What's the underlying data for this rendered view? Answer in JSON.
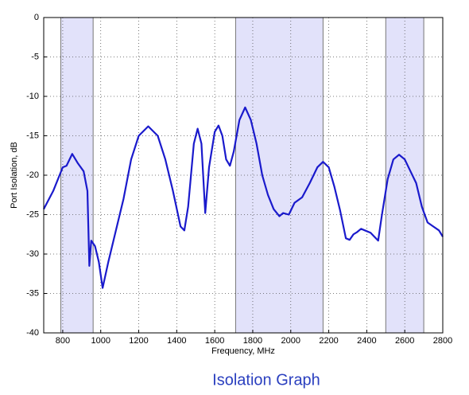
{
  "chart_data": {
    "type": "line",
    "caption": "Isolation Graph",
    "xlabel": "Frequency, MHz",
    "ylabel": "Port Isolation, dB",
    "xlim": [
      700,
      2800
    ],
    "ylim": [
      -40,
      0
    ],
    "xticks": [
      800,
      1000,
      1200,
      1400,
      1600,
      1800,
      2000,
      2200,
      2400,
      2600,
      2800
    ],
    "yticks": [
      0,
      -5,
      -10,
      -15,
      -20,
      -25,
      -30,
      -35,
      -40
    ],
    "grid": true,
    "bands": [
      {
        "x": [
          790,
          960
        ],
        "color": "#e2e2fa"
      },
      {
        "x": [
          1710,
          2170
        ],
        "color": "#e2e2fa"
      },
      {
        "x": [
          2500,
          2700
        ],
        "color": "#e2e2fa"
      }
    ],
    "x": [
      700,
      750,
      800,
      820,
      850,
      880,
      910,
      930,
      940,
      950,
      970,
      990,
      1010,
      1040,
      1080,
      1120,
      1160,
      1200,
      1250,
      1300,
      1340,
      1380,
      1420,
      1440,
      1460,
      1490,
      1510,
      1530,
      1550,
      1570,
      1600,
      1620,
      1640,
      1660,
      1680,
      1700,
      1730,
      1760,
      1790,
      1820,
      1850,
      1880,
      1910,
      1940,
      1960,
      1990,
      2020,
      2060,
      2100,
      2140,
      2170,
      2200,
      2230,
      2260,
      2290,
      2310,
      2330,
      2350,
      2370,
      2390,
      2420,
      2440,
      2460,
      2480,
      2510,
      2540,
      2570,
      2600,
      2630,
      2660,
      2690,
      2720,
      2750,
      2780,
      2800
    ],
    "series": [
      {
        "color": "#1a1acc",
        "values": [
          -24.3,
          -22,
          -19,
          -18.8,
          -17.3,
          -18.5,
          -19.5,
          -22,
          -31.5,
          -28.3,
          -29,
          -31,
          -34.3,
          -31,
          -27,
          -23,
          -18,
          -15,
          -13.8,
          -15,
          -18,
          -22,
          -26.5,
          -27,
          -24,
          -16,
          -14.1,
          -16,
          -24.8,
          -19,
          -14.5,
          -13.7,
          -15,
          -18,
          -18.8,
          -17,
          -13,
          -11.4,
          -13,
          -16,
          -20,
          -22.5,
          -24.3,
          -25.2,
          -24.8,
          -25,
          -23.5,
          -22.8,
          -21,
          -19,
          -18.3,
          -19,
          -21.5,
          -24.5,
          -28,
          -28.2,
          -27.5,
          -27.2,
          -26.8,
          -27,
          -27.3,
          -27.8,
          -28.3,
          -25,
          -20.5,
          -18,
          -17.4,
          -18,
          -19.5,
          -21,
          -24,
          -26,
          -26.5,
          -27,
          -27.8
        ]
      }
    ]
  }
}
